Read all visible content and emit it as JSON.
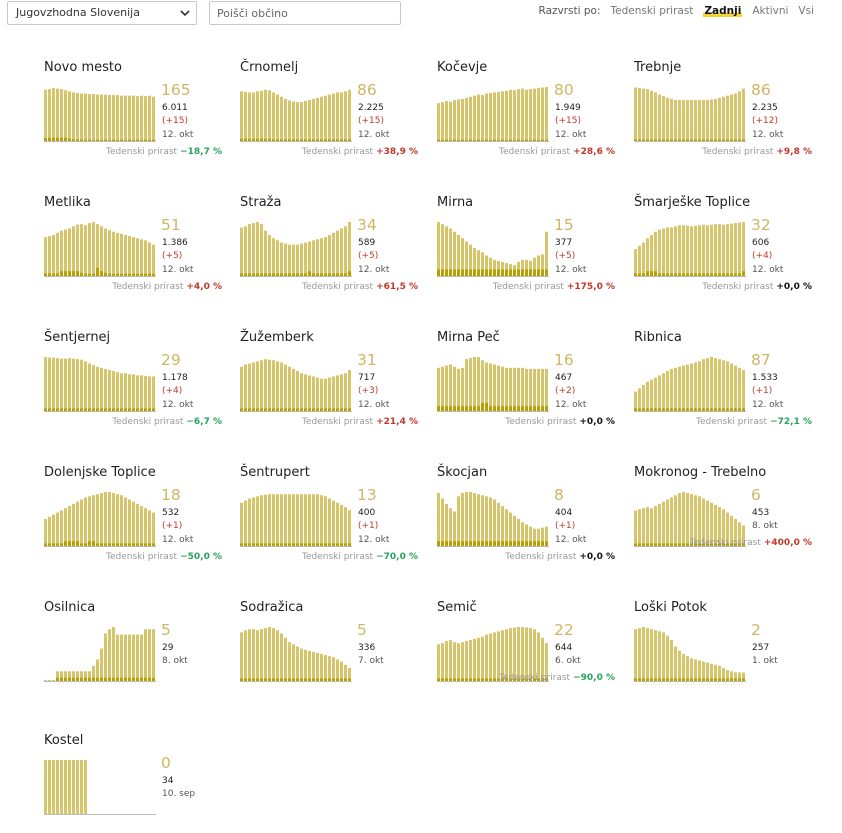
{
  "toolbar": {
    "region_value": "Jugovzhodna Slovenija",
    "search_placeholder": "Poišči občino",
    "sort_label": "Razvrsti po:",
    "sort_options": [
      "Tedenski prirast",
      "Zadnji",
      "Aktivni",
      "Vsi"
    ],
    "sort_active": "Zadnji"
  },
  "colors": {
    "bar": "#d6c56a",
    "dark": "#b8a000",
    "up": "#c0392b",
    "down": "#27a35b"
  },
  "growth_label": "Tedenski prirast",
  "municipalities": [
    {
      "name": "Novo mesto",
      "value": "165",
      "total": "6.011",
      "delta": "(+15)",
      "date": "12. okt",
      "growth": "−18,7 %",
      "trend": "down",
      "bars": [
        95,
        96,
        98,
        97,
        96,
        94,
        92,
        90,
        89,
        88,
        88,
        87,
        87,
        86,
        86,
        86,
        85,
        85,
        85,
        84,
        84,
        84,
        84,
        83,
        84,
        83,
        84,
        82
      ],
      "dark": [
        0.9,
        1,
        1,
        1,
        1,
        1,
        0.8,
        0.6,
        0.5,
        0.5,
        0.4,
        0.4,
        0.4,
        0.4,
        0.4,
        0.4,
        0.4,
        0.4,
        0.4,
        0.4,
        0.4,
        0.4,
        0.4,
        0.4,
        0.4,
        0.4,
        0.4,
        0.4
      ]
    },
    {
      "name": "Črnomelj",
      "value": "86",
      "total": "2.225",
      "delta": "(+15)",
      "date": "12. okt",
      "growth": "+38,9 %",
      "trend": "up",
      "bars": [
        92,
        91,
        90,
        90,
        92,
        93,
        95,
        94,
        90,
        86,
        82,
        78,
        75,
        73,
        72,
        72,
        74,
        76,
        78,
        80,
        82,
        84,
        86,
        88,
        90,
        90,
        92,
        95
      ],
      "dark": [
        0.7,
        0.7,
        0.7,
        0.7,
        0.7,
        0.7,
        0.7,
        0.7,
        0.5,
        0.5,
        0.5,
        0.5,
        0.5,
        0.5,
        0.5,
        0.5,
        0.5,
        0.5,
        0.5,
        0.5,
        0.5,
        0.5,
        0.5,
        0.5,
        0.5,
        0.5,
        0.5,
        0.5
      ]
    },
    {
      "name": "Kočevje",
      "value": "80",
      "total": "1.949",
      "delta": "(+15)",
      "date": "12. okt",
      "growth": "+28,6 %",
      "trend": "up",
      "bars": [
        70,
        72,
        74,
        73,
        76,
        77,
        78,
        80,
        82,
        84,
        86,
        85,
        88,
        89,
        90,
        91,
        92,
        93,
        95,
        94,
        96,
        97,
        95,
        96,
        97,
        98,
        99,
        100
      ],
      "dark": [
        0.4,
        0.4,
        0.4,
        0.4,
        0.4,
        0.4,
        0.4,
        0.4,
        0.4,
        0.4,
        0.4,
        0.4,
        0.4,
        0.4,
        0.4,
        0.4,
        0.4,
        0.4,
        0.4,
        0.4,
        0.4,
        0.4,
        0.4,
        0.4,
        0.4,
        0.4,
        0.4,
        0.4
      ]
    },
    {
      "name": "Trebnje",
      "value": "86",
      "total": "2.235",
      "delta": "(+12)",
      "date": "12. okt",
      "growth": "+9,8 %",
      "trend": "up",
      "bars": [
        99,
        98,
        97,
        96,
        93,
        90,
        86,
        83,
        80,
        78,
        76,
        76,
        76,
        76,
        76,
        76,
        76,
        76,
        76,
        77,
        78,
        80,
        82,
        84,
        86,
        88,
        92,
        97
      ],
      "dark": [
        0.5,
        0.5,
        0.5,
        0.5,
        0.5,
        0.5,
        0.5,
        0.5,
        0.5,
        0.5,
        0.5,
        0.5,
        0.5,
        0.5,
        0.5,
        0.5,
        0.5,
        0.5,
        0.5,
        0.5,
        0.5,
        0.5,
        0.5,
        0.5,
        0.5,
        0.5,
        0.5,
        0.5
      ]
    },
    {
      "name": "Metlika",
      "value": "51",
      "total": "1.386",
      "delta": "(+5)",
      "date": "12. okt",
      "growth": "+4,0 %",
      "trend": "up",
      "bars": [
        72,
        74,
        76,
        80,
        84,
        86,
        88,
        92,
        95,
        96,
        94,
        98,
        100,
        96,
        92,
        88,
        85,
        82,
        80,
        78,
        76,
        74,
        72,
        70,
        68,
        66,
        62,
        58
      ],
      "dark": [
        0.8,
        0.8,
        0.8,
        0.8,
        1.5,
        1.5,
        1.5,
        1.5,
        1.5,
        1,
        0.7,
        0.7,
        0.7,
        2.5,
        1.5,
        1,
        0.7,
        0.7,
        0.7,
        0.7,
        0.7,
        0.7,
        0.7,
        0.7,
        0.7,
        0.7,
        0.7,
        0.7
      ]
    },
    {
      "name": "Straža",
      "value": "34",
      "total": "589",
      "delta": "(+5)",
      "date": "12. okt",
      "growth": "+61,5 %",
      "trend": "up",
      "bars": [
        90,
        92,
        96,
        98,
        100,
        96,
        84,
        76,
        70,
        66,
        62,
        60,
        58,
        58,
        58,
        60,
        62,
        64,
        66,
        68,
        70,
        72,
        76,
        80,
        84,
        88,
        92,
        100
      ],
      "dark": [
        0.8,
        0.8,
        0.8,
        0.8,
        0.8,
        0.8,
        0.8,
        0.8,
        0.8,
        0.8,
        0.8,
        0.8,
        0.8,
        0.8,
        0.8,
        0.8,
        0.8,
        1.5,
        0.8,
        0.8,
        0.8,
        0.8,
        0.8,
        0.8,
        0.8,
        0.8,
        0.8,
        1.5
      ]
    },
    {
      "name": "Mirna",
      "value": "15",
      "total": "377",
      "delta": "(+5)",
      "date": "12. okt",
      "growth": "+175,0 %",
      "trend": "up",
      "bars": [
        100,
        96,
        92,
        88,
        82,
        76,
        70,
        64,
        58,
        52,
        48,
        44,
        38,
        34,
        30,
        28,
        26,
        24,
        22,
        20,
        26,
        30,
        30,
        28,
        34,
        38,
        40,
        82
      ],
      "dark": [
        2,
        2,
        2,
        2,
        2,
        2,
        2,
        2,
        2,
        2,
        2,
        2,
        2,
        2,
        2,
        2,
        2,
        2,
        2,
        2,
        2,
        2,
        2,
        2,
        2,
        2,
        2,
        2
      ]
    },
    {
      "name": "Šmarješke Toplice",
      "value": "32",
      "total": "606",
      "delta": "(+4)",
      "date": "12. okt",
      "growth": "+0,0 %",
      "trend": "flat",
      "bars": [
        50,
        56,
        62,
        70,
        76,
        82,
        86,
        88,
        90,
        90,
        92,
        94,
        94,
        93,
        92,
        93,
        94,
        95,
        94,
        95,
        96,
        96,
        95,
        96,
        97,
        98,
        99,
        100
      ],
      "dark": [
        0.8,
        0.8,
        0.8,
        1.5,
        1.5,
        1.5,
        0.8,
        0.8,
        0.8,
        0.8,
        0.8,
        0.8,
        0.8,
        0.8,
        0.8,
        0.8,
        0.8,
        0.8,
        0.8,
        0.8,
        0.8,
        0.8,
        0.8,
        0.8,
        0.8,
        0.8,
        0.8,
        1.5
      ]
    },
    {
      "name": "Šentjernej",
      "value": "29",
      "total": "1.178",
      "delta": "(+4)",
      "date": "12. okt",
      "growth": "−6,7 %",
      "trend": "down",
      "bars": [
        100,
        99,
        99,
        98,
        97,
        97,
        98,
        97,
        96,
        95,
        92,
        88,
        85,
        82,
        80,
        78,
        76,
        74,
        72,
        70,
        70,
        68,
        68,
        66,
        66,
        65,
        64,
        64
      ],
      "dark": [
        0.8,
        0.8,
        0.8,
        0.8,
        0.8,
        0.8,
        0.8,
        0.8,
        0.8,
        0.8,
        0.8,
        0.8,
        0.8,
        0.8,
        0.8,
        0.8,
        0.8,
        0.8,
        0.8,
        0.8,
        0.8,
        0.8,
        0.8,
        0.8,
        0.8,
        0.8,
        0.8,
        0.8
      ]
    },
    {
      "name": "Žužemberk",
      "value": "31",
      "total": "717",
      "delta": "(+3)",
      "date": "12. okt",
      "growth": "+21,4 %",
      "trend": "up",
      "bars": [
        82,
        86,
        88,
        90,
        92,
        94,
        96,
        95,
        94,
        92,
        90,
        86,
        82,
        78,
        74,
        70,
        68,
        66,
        64,
        62,
        60,
        60,
        62,
        64,
        66,
        68,
        70,
        76
      ],
      "dark": [
        0.8,
        0.8,
        0.8,
        0.8,
        0.8,
        0.8,
        0.8,
        0.8,
        0.8,
        0.8,
        0.8,
        0.8,
        0.8,
        0.8,
        0.8,
        0.8,
        0.8,
        0.8,
        0.8,
        0.8,
        0.8,
        0.8,
        0.8,
        0.8,
        0.8,
        0.8,
        0.8,
        0.8
      ]
    },
    {
      "name": "Mirna Peč",
      "value": "16",
      "total": "467",
      "delta": "(+2)",
      "date": "12. okt",
      "growth": "+0,0 %",
      "trend": "flat",
      "bars": [
        80,
        82,
        84,
        86,
        82,
        78,
        80,
        96,
        98,
        100,
        100,
        94,
        90,
        88,
        86,
        84,
        82,
        80,
        80,
        80,
        80,
        80,
        78,
        78,
        78,
        78,
        78,
        78
      ],
      "dark": [
        1.5,
        1.5,
        1.5,
        1.5,
        1.5,
        1.5,
        1.5,
        1.5,
        1.5,
        1.5,
        1.5,
        2.5,
        2.5,
        1.5,
        1.5,
        1.5,
        1.5,
        1.5,
        1.5,
        1.5,
        1.5,
        1.5,
        1.5,
        1.5,
        1.5,
        1.5,
        1.5,
        1.5
      ]
    },
    {
      "name": "Ribnica",
      "value": "87",
      "total": "1.533",
      "delta": "(+1)",
      "date": "12. okt",
      "growth": "−72,1 %",
      "trend": "down",
      "bars": [
        36,
        42,
        48,
        54,
        58,
        62,
        66,
        70,
        74,
        78,
        80,
        82,
        84,
        86,
        88,
        90,
        92,
        96,
        98,
        100,
        98,
        96,
        94,
        92,
        88,
        84,
        80,
        76
      ],
      "dark": [
        0.8,
        0.8,
        0.8,
        0.8,
        0.8,
        0.8,
        0.8,
        0.8,
        0.8,
        0.8,
        0.8,
        0.8,
        0.8,
        0.8,
        0.8,
        0.8,
        0.8,
        0.8,
        0.8,
        0.8,
        0.8,
        0.8,
        0.8,
        0.8,
        0.8,
        0.8,
        0.8,
        0.8
      ]
    },
    {
      "name": "Dolenjske Toplice",
      "value": "18",
      "total": "532",
      "delta": "(+1)",
      "date": "12. okt",
      "growth": "−50,0 %",
      "trend": "down",
      "bars": [
        50,
        54,
        58,
        62,
        66,
        70,
        74,
        78,
        82,
        86,
        90,
        92,
        94,
        96,
        98,
        100,
        100,
        98,
        96,
        94,
        90,
        86,
        82,
        78,
        74,
        70,
        66,
        62
      ],
      "dark": [
        0.8,
        0.8,
        0.8,
        0.8,
        0.8,
        1.5,
        1.5,
        1.5,
        1.5,
        0.8,
        0.8,
        1.5,
        1.5,
        0.8,
        0.8,
        0.8,
        0.8,
        0.8,
        0.8,
        0.8,
        0.8,
        0.8,
        0.8,
        0.8,
        0.8,
        0.8,
        0.8,
        0.8
      ]
    },
    {
      "name": "Šentrupert",
      "value": "13",
      "total": "400",
      "delta": "(+1)",
      "date": "12. okt",
      "growth": "−70,0 %",
      "trend": "down",
      "bars": [
        80,
        84,
        88,
        90,
        92,
        94,
        95,
        96,
        96,
        96,
        96,
        96,
        96,
        96,
        96,
        96,
        96,
        96,
        96,
        96,
        94,
        92,
        88,
        84,
        80,
        76,
        72,
        66
      ],
      "dark": [
        0.8,
        0.8,
        0.8,
        0.8,
        0.8,
        0.8,
        0.8,
        0.8,
        0.8,
        0.8,
        0.8,
        0.8,
        0.8,
        0.8,
        0.8,
        0.8,
        0.8,
        0.8,
        0.8,
        0.8,
        0.8,
        0.8,
        0.8,
        0.8,
        0.8,
        0.8,
        0.8,
        0.8
      ]
    },
    {
      "name": "Škocjan",
      "value": "8",
      "total": "404",
      "delta": "(+1)",
      "date": "12. okt",
      "growth": "+0,0 %",
      "trend": "flat",
      "bars": [
        98,
        88,
        78,
        70,
        64,
        92,
        98,
        100,
        100,
        98,
        96,
        94,
        92,
        90,
        86,
        80,
        74,
        68,
        62,
        56,
        50,
        44,
        40,
        36,
        32,
        32,
        34,
        36
      ],
      "dark": [
        1.5,
        1.5,
        1.5,
        1.5,
        1.5,
        1.5,
        1.5,
        1.5,
        1.5,
        1.5,
        1.5,
        1.5,
        1.5,
        1.5,
        1.5,
        1.5,
        1.5,
        1.5,
        1.5,
        1.5,
        1.5,
        1.5,
        1.5,
        1.5,
        1.5,
        1.5,
        1.5,
        1.5
      ]
    },
    {
      "name": "Mokronog - Trebelno",
      "value": "6",
      "total": "453",
      "delta": "",
      "date": "8. okt",
      "growth": "+400,0 %",
      "trend": "up",
      "bars": [
        66,
        68,
        70,
        72,
        70,
        74,
        78,
        82,
        86,
        90,
        94,
        98,
        100,
        98,
        96,
        94,
        92,
        88,
        84,
        80,
        76,
        72,
        68,
        62,
        56,
        50,
        44,
        38
      ],
      "dark": [
        0.8,
        0.8,
        0.8,
        0.8,
        0.8,
        0.8,
        0.8,
        0.8,
        0.8,
        0.8,
        0.8,
        0.8,
        0.8,
        0.8,
        0.8,
        0.8,
        0.8,
        0.8,
        0.8,
        0.8,
        0.8,
        0.8,
        0.8,
        0.8,
        0.8,
        0.8,
        0.8,
        0.8
      ]
    },
    {
      "name": "Osilnica",
      "value": "5",
      "total": "29",
      "delta": "",
      "date": "8. okt",
      "growth": "",
      "trend": "flat",
      "bars": [
        2,
        2,
        2,
        18,
        18,
        18,
        18,
        18,
        18,
        18,
        18,
        18,
        28,
        40,
        60,
        88,
        96,
        100,
        86,
        86,
        86,
        86,
        86,
        86,
        86,
        96,
        96,
        96
      ],
      "dark": [
        0,
        0,
        0,
        1,
        1,
        1,
        1,
        1,
        1,
        1,
        1,
        1,
        1,
        1,
        1,
        1,
        1,
        1,
        1,
        1,
        1,
        1,
        1,
        1,
        1,
        1,
        1,
        1
      ]
    },
    {
      "name": "Sodražica",
      "value": "5",
      "total": "336",
      "delta": "",
      "date": "7. okt",
      "growth": "",
      "trend": "flat",
      "bars": [
        90,
        94,
        96,
        96,
        94,
        96,
        98,
        100,
        98,
        94,
        88,
        80,
        72,
        68,
        64,
        60,
        58,
        56,
        54,
        52,
        50,
        48,
        46,
        44,
        40,
        36,
        30,
        24
      ],
      "dark": [
        0.8,
        0.8,
        0.8,
        0.8,
        0.8,
        0.8,
        0.8,
        0.8,
        0.8,
        0.8,
        0.8,
        0.8,
        0.8,
        0.8,
        0.8,
        0.8,
        0.8,
        0.8,
        0.8,
        0.8,
        0.8,
        0.8,
        0.8,
        0.8,
        0.8,
        0.8,
        0.8,
        0.8
      ]
    },
    {
      "name": "Semič",
      "value": "22",
      "total": "644",
      "delta": "",
      "date": "6. okt",
      "growth": "−90,0 %",
      "trend": "down",
      "bars": [
        68,
        70,
        74,
        76,
        72,
        70,
        72,
        74,
        76,
        78,
        80,
        82,
        86,
        88,
        90,
        92,
        94,
        96,
        98,
        99,
        100,
        100,
        99,
        98,
        96,
        90,
        80,
        70
      ],
      "dark": [
        0.8,
        0.8,
        0.8,
        0.8,
        0.8,
        0.8,
        0.8,
        0.8,
        0.8,
        0.8,
        0.8,
        0.8,
        0.8,
        0.8,
        0.8,
        0.8,
        0.8,
        0.8,
        0.8,
        0.8,
        0.8,
        0.8,
        0.8,
        0.8,
        0.8,
        0.8,
        0.8,
        0.8
      ]
    },
    {
      "name": "Loški Potok",
      "value": "2",
      "total": "257",
      "delta": "",
      "date": "1. okt",
      "growth": "",
      "trend": "flat",
      "bars": [
        96,
        98,
        100,
        98,
        96,
        94,
        92,
        90,
        84,
        76,
        64,
        56,
        50,
        46,
        42,
        40,
        38,
        36,
        34,
        32,
        30,
        28,
        24,
        20,
        18,
        16,
        16,
        16
      ],
      "dark": [
        0.8,
        0.8,
        0.8,
        0.8,
        0.8,
        0.8,
        0.8,
        0.8,
        0.8,
        0.8,
        0.8,
        0.8,
        0.8,
        0.8,
        0.8,
        0.8,
        0.8,
        0.8,
        0.8,
        0.8,
        0.8,
        0.8,
        0.8,
        0.8,
        0.8,
        0.8,
        0.8,
        0.8
      ]
    },
    {
      "name": "Kostel",
      "value": "0",
      "total": "34",
      "delta": "",
      "date": "10. sep",
      "growth": "",
      "trend": "flat",
      "bars": [
        100,
        100,
        100,
        100,
        100,
        100,
        100,
        100,
        100,
        100,
        100,
        0,
        0,
        0,
        0,
        0,
        0,
        0,
        0,
        0,
        0,
        0,
        0,
        0,
        0,
        0,
        0,
        0
      ],
      "dark": [
        0,
        0,
        0,
        0,
        0,
        0,
        0,
        0,
        0,
        0,
        0,
        0,
        0,
        0,
        0,
        0,
        0,
        0,
        0,
        0,
        0,
        0,
        0,
        0,
        0,
        0,
        0,
        0
      ]
    }
  ]
}
